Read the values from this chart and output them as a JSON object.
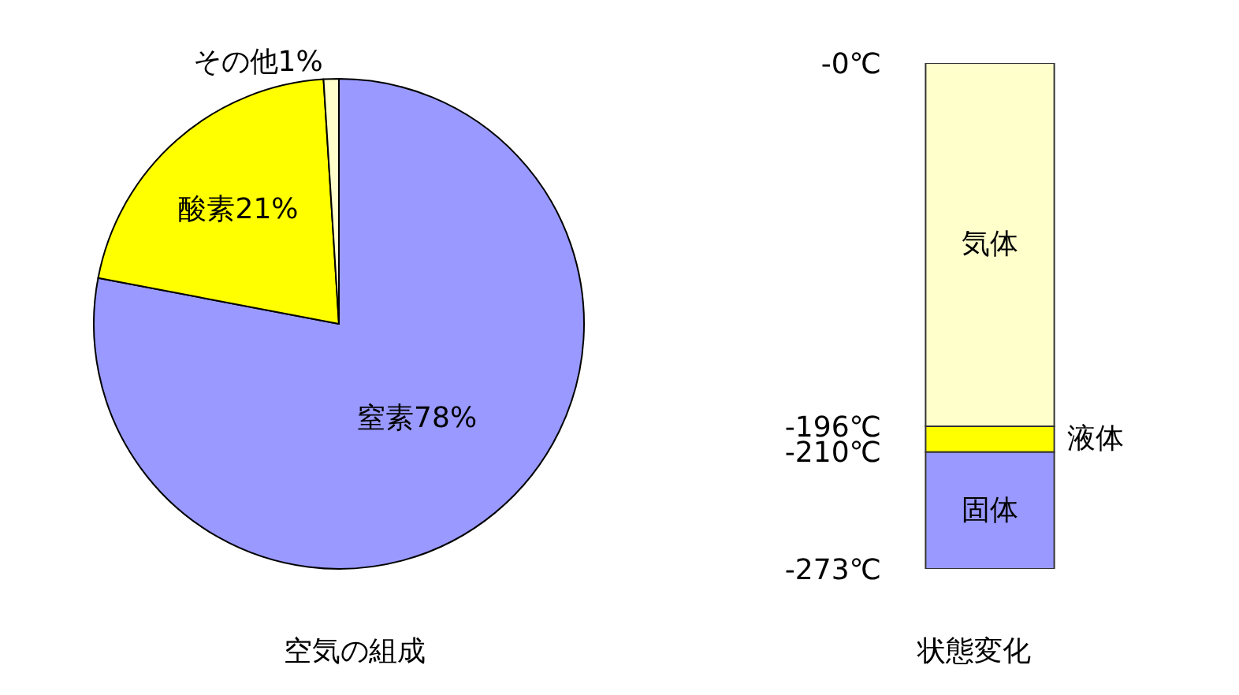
{
  "chart_data": [
    {
      "type": "pie",
      "title": "空気の組成",
      "categories": [
        "窒素78%",
        "酸素21%",
        "その他1%"
      ],
      "values": [
        78,
        21,
        1
      ],
      "colors": [
        "#9999ff",
        "#ffff00",
        "#ffffcc"
      ]
    },
    {
      "type": "bar",
      "title": "状態変化",
      "categories": [
        null
      ],
      "stacked": true,
      "series": [
        {
          "name": "気体",
          "color": "#ffffcc",
          "values": [
            -196
          ]
        },
        {
          "name": "液体",
          "color": "#ffff00",
          "values": [
            -14
          ]
        },
        {
          "name": "固体",
          "color": "#9999ff",
          "values": [
            -63
          ]
        }
      ],
      "ylim": [
        -273,
        0
      ],
      "yticks": [
        {
          "value": 0,
          "label": "-0℃"
        },
        {
          "value": -196,
          "label": "-196℃"
        },
        {
          "value": -210,
          "label": "-210℃"
        },
        {
          "value": -273,
          "label": "-273℃"
        }
      ],
      "tick_labels": "y"
    }
  ]
}
